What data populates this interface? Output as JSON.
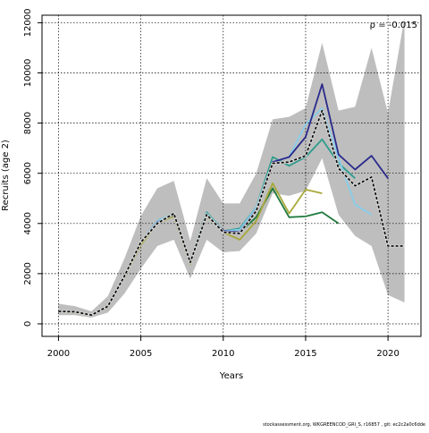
{
  "chart_data": {
    "type": "line",
    "title": "",
    "xlabel": "Years",
    "ylabel": "Recruits (age 2)",
    "annotation": "ρ = -0.015",
    "footer": "stockassessment.org, WKGREENCOD_GRI_S, r16857 , git: ec2c2a0c6dde",
    "xlim": [
      1999,
      2022
    ],
    "ylim": [
      -500,
      12300
    ],
    "x_ticks": [
      2000,
      2005,
      2010,
      2015,
      2020
    ],
    "y_ticks": [
      0,
      2000,
      4000,
      6000,
      8000,
      10000,
      12000
    ],
    "grid": true,
    "band": {
      "x": [
        2000,
        2001,
        2002,
        2003,
        2004,
        2005,
        2006,
        2007,
        2008,
        2009,
        2010,
        2011,
        2012,
        2013,
        2014,
        2015,
        2016,
        2017,
        2018,
        2019,
        2020,
        2021
      ],
      "upper": [
        800,
        700,
        500,
        1100,
        2600,
        4300,
        5400,
        5700,
        3300,
        5800,
        4800,
        4800,
        6000,
        8150,
        8250,
        8600,
        11200,
        8500,
        8650,
        11000,
        8400,
        12200
      ],
      "lower": [
        350,
        350,
        250,
        450,
        1200,
        2200,
        3100,
        3350,
        1800,
        3350,
        2850,
        2900,
        3600,
        5200,
        5100,
        5300,
        6600,
        4350,
        3500,
        3100,
        1150,
        850
      ],
      "color": "#bebebe"
    },
    "series": [
      {
        "color": "#d4d4d4",
        "width": 2.4,
        "dash": false,
        "x": [
          2000,
          2001,
          2002,
          2003,
          2004,
          2005,
          2006,
          2007,
          2008,
          2009,
          2010,
          2011,
          2012,
          2013,
          2014,
          2015,
          2016,
          2017,
          2018,
          2019,
          2020,
          2021
        ],
        "values": [
          500,
          480,
          350,
          700,
          1900,
          3250,
          4000,
          4400,
          2450,
          4350,
          3650,
          3600,
          4500,
          6400,
          6450,
          6700,
          8500,
          6200,
          5500,
          5850,
          3100,
          3100
        ]
      },
      {
        "color": "#1f7a3d",
        "width": 1.8,
        "dash": false,
        "x": [
          2000,
          2001,
          2002,
          2003,
          2004,
          2005,
          2006,
          2007,
          2008,
          2009,
          2010,
          2011,
          2012,
          2013,
          2014,
          2015,
          2016,
          2017
        ],
        "values": [
          490,
          470,
          340,
          690,
          1880,
          3200,
          4050,
          4350,
          2480,
          4350,
          3700,
          3650,
          4250,
          5400,
          4250,
          4280,
          4450,
          4000
        ]
      },
      {
        "color": "#a8a83a",
        "width": 1.8,
        "dash": false,
        "x": [
          2000,
          2001,
          2002,
          2003,
          2004,
          2005,
          2006,
          2007,
          2008,
          2009,
          2010,
          2011,
          2012,
          2013,
          2014,
          2015,
          2016
        ],
        "values": [
          480,
          460,
          330,
          680,
          1860,
          3150,
          4000,
          4300,
          2400,
          4300,
          3650,
          3350,
          4100,
          5600,
          4400,
          5350,
          5200
        ]
      },
      {
        "color": "#2e9c8c",
        "width": 1.8,
        "dash": false,
        "x": [
          2000,
          2001,
          2002,
          2003,
          2004,
          2005,
          2006,
          2007,
          2008,
          2009,
          2010,
          2011,
          2012,
          2013,
          2014,
          2015,
          2016,
          2017,
          2018
        ],
        "values": [
          500,
          480,
          350,
          700,
          1900,
          3250,
          4100,
          4400,
          2500,
          4450,
          3700,
          3800,
          4650,
          6650,
          6300,
          6650,
          7350,
          6400,
          5800
        ]
      },
      {
        "color": "#87cdea",
        "width": 1.8,
        "dash": false,
        "x": [
          2000,
          2001,
          2002,
          2003,
          2004,
          2005,
          2006,
          2007,
          2008,
          2009,
          2010,
          2011,
          2012,
          2013,
          2014,
          2015,
          2016,
          2017,
          2018,
          2019
        ],
        "values": [
          500,
          480,
          350,
          700,
          1900,
          3250,
          4100,
          4400,
          2500,
          4400,
          3700,
          3750,
          4650,
          6450,
          6650,
          7950,
          8600,
          6600,
          4750,
          4350
        ]
      },
      {
        "color": "#2b2a8c",
        "width": 1.8,
        "dash": false,
        "x": [
          2000,
          2001,
          2002,
          2003,
          2004,
          2005,
          2006,
          2007,
          2008,
          2009,
          2010,
          2011,
          2012,
          2013,
          2014,
          2015,
          2016,
          2017,
          2018,
          2019,
          2020
        ],
        "values": [
          500,
          480,
          350,
          700,
          1900,
          3250,
          4050,
          4350,
          2450,
          4350,
          3700,
          3650,
          4550,
          6450,
          6650,
          7450,
          9550,
          6750,
          6150,
          6700,
          5800
        ]
      },
      {
        "color": "#000000",
        "width": 1.6,
        "dash": true,
        "x": [
          2000,
          2001,
          2002,
          2003,
          2004,
          2005,
          2006,
          2007,
          2008,
          2009,
          2010,
          2011,
          2012,
          2013,
          2014,
          2015,
          2016,
          2017,
          2018,
          2019,
          2020,
          2021
        ],
        "values": [
          500,
          480,
          350,
          700,
          1900,
          3250,
          4000,
          4400,
          2450,
          4350,
          3650,
          3600,
          4500,
          6400,
          6450,
          6700,
          8500,
          6200,
          5500,
          5850,
          3100,
          3100
        ]
      }
    ]
  }
}
